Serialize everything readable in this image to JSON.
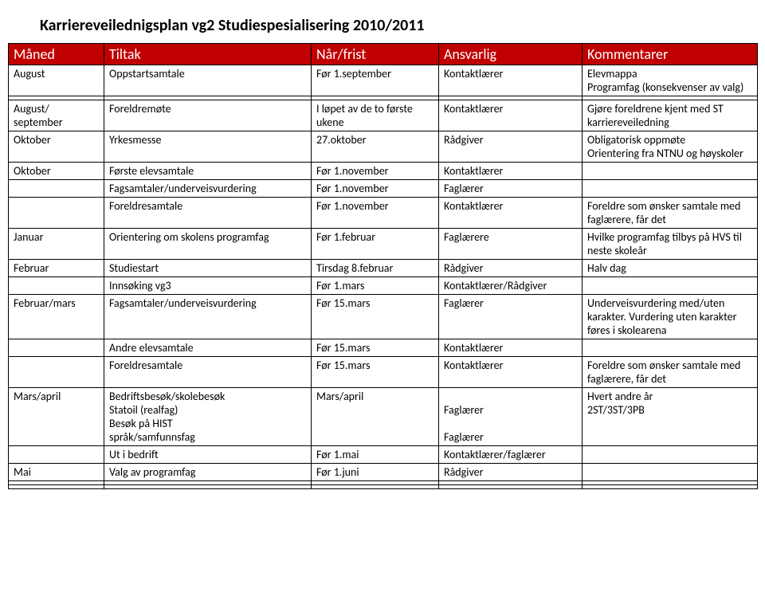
{
  "title": "Karriereveilednigsplan vg2 Studiespesialisering 2010/2011",
  "header_bg": "#c00000",
  "header_fg": "#ffffff",
  "columns": [
    "Måned",
    "Tiltak",
    "Når/frist",
    "Ansvarlig",
    "Kommentarer"
  ],
  "rows": [
    {
      "m": "August",
      "t": "Oppstartsamtale",
      "n": "Før 1.september",
      "a": "Kontaktlærer",
      "k": "Elevmappa\nProgramfag (konsekvenser av valg)"
    },
    {
      "m": "",
      "t": "",
      "n": "",
      "a": "",
      "k": ""
    },
    {
      "m": "August/\nseptember",
      "t": "Foreldremøte",
      "n": "I løpet av de to første ukene",
      "a": "Kontaktlærer",
      "k": "Gjøre foreldrene kjent med ST karriereveiledning"
    },
    {
      "m": "Oktober",
      "t": "Yrkesmesse",
      "n": "27.oktober",
      "a": "Rådgiver",
      "k": "Obligatorisk oppmøte\nOrientering fra NTNU og høyskoler"
    },
    {
      "m": "Oktober",
      "t": "Første elevsamtale",
      "n": "Før 1.november",
      "a": "Kontaktlærer",
      "k": ""
    },
    {
      "m": "",
      "t": "Fagsamtaler/underveisvurdering",
      "n": "Før 1.november",
      "a": "Faglærer",
      "k": ""
    },
    {
      "m": "",
      "t": "Foreldresamtale",
      "n": "Før 1.november",
      "a": "Kontaktlærer",
      "k": "Foreldre som ønsker samtale med faglærere, får det"
    },
    {
      "m": "Januar",
      "t": "Orientering om skolens programfag",
      "n": "Før 1.februar",
      "a": "Faglærere",
      "k": "Hvilke programfag tilbys på HVS til neste skoleår"
    },
    {
      "m": "Februar",
      "t": "Studiestart",
      "n": "Tirsdag 8.februar",
      "a": "Rådgiver",
      "k": "Halv dag"
    },
    {
      "m": "",
      "t": "Innsøking vg3",
      "n": "Før 1.mars",
      "a": "Kontaktlærer/Rådgiver",
      "k": ""
    },
    {
      "m": "Februar/mars",
      "t": "Fagsamtaler/underveisvurdering",
      "n": "Før 15.mars",
      "a": "Faglærer",
      "k": "Underveisvurdering med/uten karakter. Vurdering uten karakter føres i skolearena"
    },
    {
      "m": "",
      "t": "Andre elevsamtale",
      "n": "Før 15.mars",
      "a": "Kontaktlærer",
      "k": ""
    },
    {
      "m": "",
      "t": "Foreldresamtale",
      "n": "Før 15.mars",
      "a": "Kontaktlærer",
      "k": "Foreldre som ønsker samtale med faglærere, får det"
    },
    {
      "m": "Mars/april",
      "t": "Bedriftsbesøk/skolebesøk\nStatoil (realfag)\nBesøk på HIST\nspråk/samfunnsfag",
      "n": "Mars/april",
      "a": "\nFaglærer\n\nFaglærer",
      "k": "Hvert andre år\n2ST/3ST/3PB"
    },
    {
      "m": "",
      "t": "Ut i bedrift",
      "n": "Før 1.mai",
      "a": "Kontaktlærer/faglærer",
      "k": ""
    },
    {
      "m": "Mai",
      "t": "Valg av programfag",
      "n": "Før 1.juni",
      "a": "Rådgiver",
      "k": ""
    },
    {
      "m": "",
      "t": "",
      "n": "",
      "a": "",
      "k": ""
    },
    {
      "m": "",
      "t": "",
      "n": "",
      "a": "",
      "k": ""
    }
  ]
}
